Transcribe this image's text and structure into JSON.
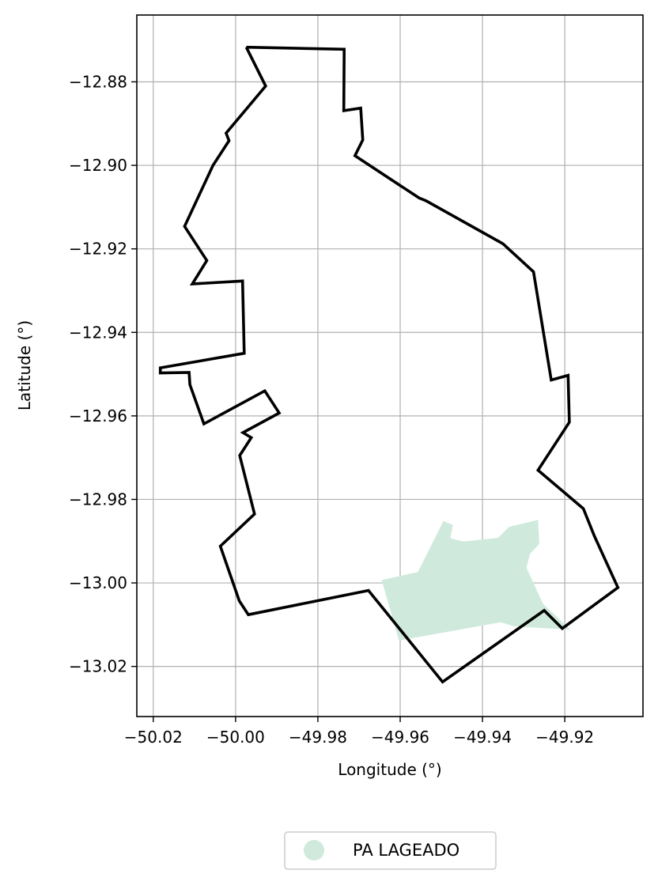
{
  "chart_data": {
    "type": "map",
    "xlabel": "Longitude (°)",
    "ylabel": "Latitude (°)",
    "xlim": [
      -50.024,
      -49.901
    ],
    "ylim": [
      -13.032,
      -12.864
    ],
    "x_ticks": [
      -50.02,
      -50.0,
      -49.98,
      -49.96,
      -49.94,
      -49.92
    ],
    "x_tick_labels": [
      "−50.02",
      "−50.00",
      "−49.98",
      "−49.96",
      "−49.94",
      "−49.92"
    ],
    "y_ticks": [
      -12.88,
      -12.9,
      -12.92,
      -12.94,
      -12.96,
      -12.98,
      -13.0,
      -13.02
    ],
    "y_tick_labels": [
      "−12.88",
      "−12.90",
      "−12.92",
      "−12.94",
      "−12.96",
      "−12.98",
      "−13.00",
      "−13.02"
    ],
    "grid": true,
    "legend_position": "bottom-center",
    "boundary": {
      "color": "#000000",
      "coords": [
        [
          -49.9974,
          -12.8717
        ],
        [
          -49.9736,
          -12.8722
        ],
        [
          -49.9737,
          -12.8869
        ],
        [
          -49.9696,
          -12.8863
        ],
        [
          -49.9691,
          -12.8939
        ],
        [
          -49.971,
          -12.8977
        ],
        [
          -49.9554,
          -12.9078
        ],
        [
          -49.9537,
          -12.9085
        ],
        [
          -49.935,
          -12.9188
        ],
        [
          -49.9276,
          -12.9255
        ],
        [
          -49.9233,
          -12.9514
        ],
        [
          -49.9192,
          -12.9503
        ],
        [
          -49.9189,
          -12.9615
        ],
        [
          -49.9265,
          -12.973
        ],
        [
          -49.9155,
          -12.9822
        ],
        [
          -49.9128,
          -12.9888
        ],
        [
          -49.9071,
          -13.0011
        ],
        [
          -49.9206,
          -13.0109
        ],
        [
          -49.925,
          -13.0066
        ],
        [
          -49.9497,
          -13.0237
        ],
        [
          -49.9677,
          -13.0018
        ],
        [
          -49.9969,
          -13.0076
        ],
        [
          -49.9991,
          -13.0043
        ],
        [
          -50.0037,
          -12.9912
        ],
        [
          -49.9954,
          -12.9835
        ],
        [
          -49.999,
          -12.9695
        ],
        [
          -49.9962,
          -12.9652
        ],
        [
          -49.9982,
          -12.964
        ],
        [
          -49.9894,
          -12.9593
        ],
        [
          -49.9929,
          -12.954
        ],
        [
          -50.0077,
          -12.9619
        ],
        [
          -50.0111,
          -12.9525
        ],
        [
          -50.0113,
          -12.9496
        ],
        [
          -50.0183,
          -12.9497
        ],
        [
          -50.0183,
          -12.9485
        ],
        [
          -49.9979,
          -12.945
        ],
        [
          -49.9983,
          -12.9277
        ],
        [
          -50.0105,
          -12.9284
        ],
        [
          -50.007,
          -12.9228
        ],
        [
          -50.0124,
          -12.9146
        ],
        [
          -50.0055,
          -12.9
        ],
        [
          -50.0016,
          -12.8941
        ],
        [
          -50.0023,
          -12.8923
        ],
        [
          -49.9927,
          -12.881
        ],
        [
          -49.9974,
          -12.8717
        ]
      ]
    },
    "series": [
      {
        "name": "PA LAGEADO",
        "color": "#cfeadc",
        "coords": [
          [
            -49.9645,
            -12.9993
          ],
          [
            -49.9557,
            -12.9974
          ],
          [
            -49.9495,
            -12.9852
          ],
          [
            -49.9472,
            -12.9861
          ],
          [
            -49.9478,
            -12.9893
          ],
          [
            -49.9446,
            -12.9901
          ],
          [
            -49.9362,
            -12.9892
          ],
          [
            -49.9336,
            -12.9866
          ],
          [
            -49.9265,
            -12.9849
          ],
          [
            -49.9262,
            -12.9907
          ],
          [
            -49.9285,
            -12.9931
          ],
          [
            -49.9293,
            -12.9964
          ],
          [
            -49.9253,
            -13.005
          ],
          [
            -49.9186,
            -13.0112
          ],
          [
            -49.9324,
            -13.0104
          ],
          [
            -49.9355,
            -13.0094
          ],
          [
            -49.9603,
            -13.0138
          ],
          [
            -49.9645,
            -12.9993
          ]
        ]
      }
    ]
  }
}
